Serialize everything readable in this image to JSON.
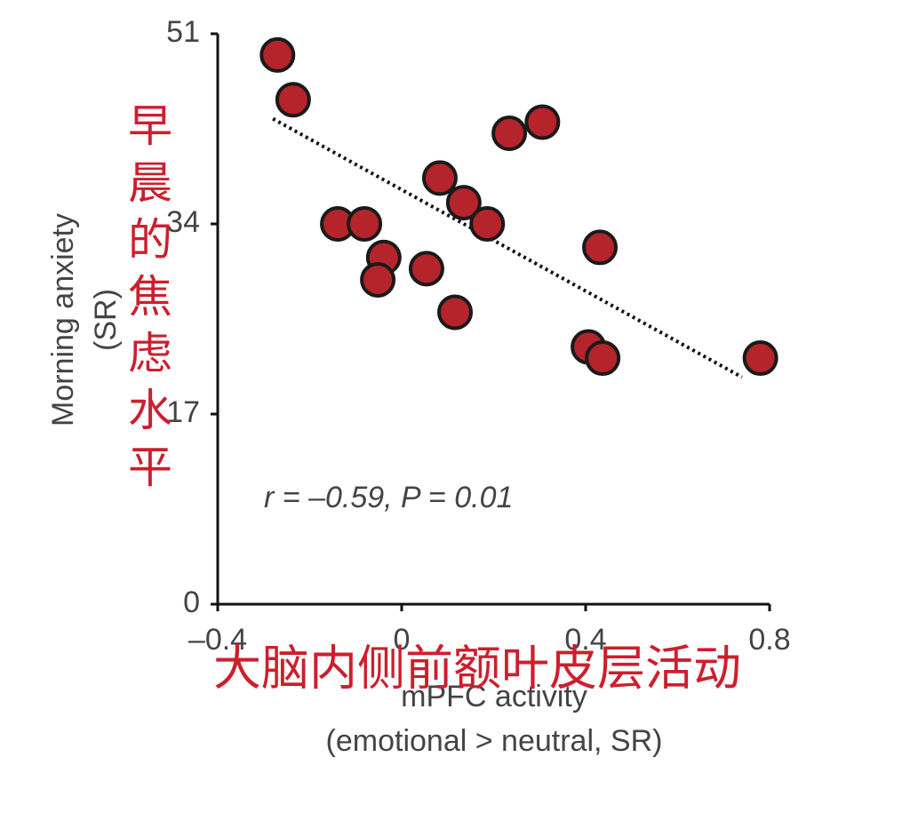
{
  "chart_data": {
    "type": "scatter",
    "x_label": [
      "mPFC activity",
      "(emotional > neutral, SR)"
    ],
    "y_label": [
      "Morning anxiety",
      "(SR)"
    ],
    "annotation": "r = –0.59, P = 0.01",
    "x_label_translation": "大脑内侧前额叶皮层活动",
    "y_label_translation": "早晨的焦虑水平",
    "xlim": [
      -0.4,
      0.8
    ],
    "ylim": [
      0,
      51
    ],
    "xticks": [
      {
        "value": -0.4,
        "label": "–0.4"
      },
      0,
      0.4,
      0.8
    ],
    "yticks": [
      0,
      17,
      34,
      51
    ],
    "color": "#b5232b",
    "x": [
      -0.27,
      -0.236,
      0.234,
      0.306,
      0.083,
      0.135,
      0.186,
      -0.139,
      -0.081,
      -0.039,
      -0.052,
      0.054,
      0.116,
      0.431,
      0.406,
      0.437,
      0.78
    ],
    "y": [
      49.1,
      45.1,
      42.1,
      43.1,
      38.1,
      35.9,
      34.0,
      34.0,
      34.0,
      31.0,
      29.0,
      30.0,
      26.1,
      31.9,
      23.0,
      22.0,
      22.0
    ],
    "trendline": {
      "x": [
        -0.28,
        0.74
      ],
      "y": [
        43.4,
        20.3
      ]
    }
  }
}
